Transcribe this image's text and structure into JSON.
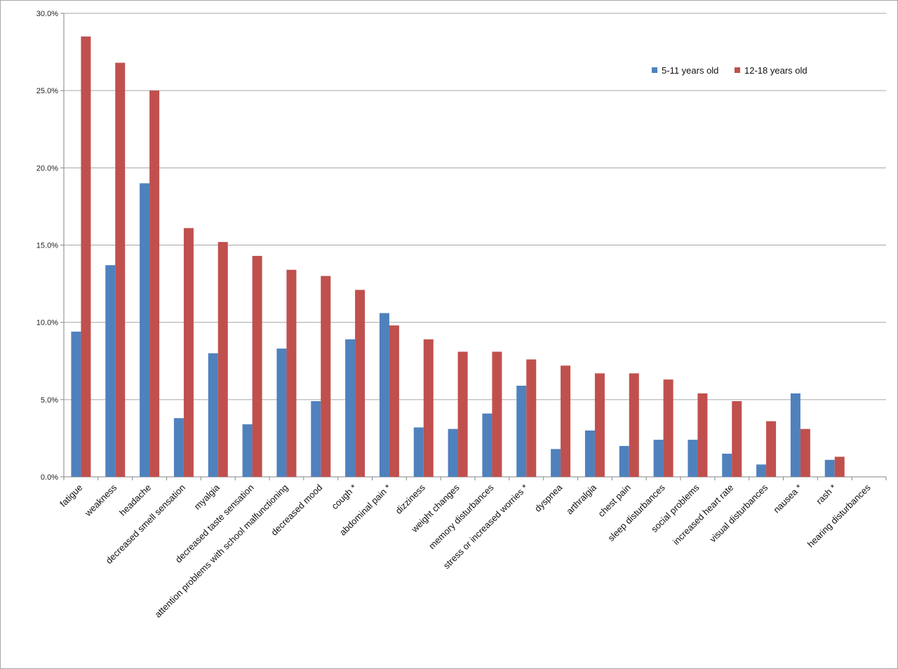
{
  "chart_data": {
    "type": "bar",
    "title": "",
    "xlabel": "",
    "ylabel": "",
    "ylim": [
      0,
      30
    ],
    "y_ticks": [
      0,
      5,
      10,
      15,
      20,
      25,
      30
    ],
    "y_tick_labels": [
      "0.0%",
      "5.0%",
      "10.0%",
      "15.0%",
      "20.0%",
      "25.0%",
      "30.0%"
    ],
    "grid": true,
    "legend_position": "top-right",
    "categories": [
      "fatigue",
      "weakness",
      "headache",
      "decreased smell  sensation",
      "myalgia",
      "decreased taste sensation",
      "attention problems with school malfunctioning",
      "decreased mood",
      "cough *",
      "abdominal pain *",
      "dizziness",
      "weight changes",
      "memory disturbances",
      "stress or increased worries *",
      "dyspnea",
      "arthralgia",
      "chest pain",
      "sleep disturbances",
      "social problems",
      "increased heart rate",
      "visual disturbances",
      "nausea *",
      "rash *",
      "hearing disturbances"
    ],
    "series": [
      {
        "name": "5-11 years old",
        "color": "#4f81bd",
        "values": [
          9.4,
          13.7,
          19.0,
          3.8,
          8.0,
          3.4,
          8.3,
          4.9,
          8.9,
          10.6,
          3.2,
          3.1,
          4.1,
          5.9,
          1.8,
          3.0,
          2.0,
          2.4,
          2.4,
          1.5,
          0.8,
          5.4,
          1.1,
          0.0
        ]
      },
      {
        "name": "12-18 years old",
        "color": "#c0504d",
        "values": [
          28.5,
          26.8,
          25.0,
          16.1,
          15.2,
          14.3,
          13.4,
          13.0,
          12.1,
          9.8,
          8.9,
          8.1,
          8.1,
          7.6,
          7.2,
          6.7,
          6.7,
          6.3,
          5.4,
          4.9,
          3.6,
          3.1,
          1.3,
          0.0
        ]
      }
    ]
  }
}
